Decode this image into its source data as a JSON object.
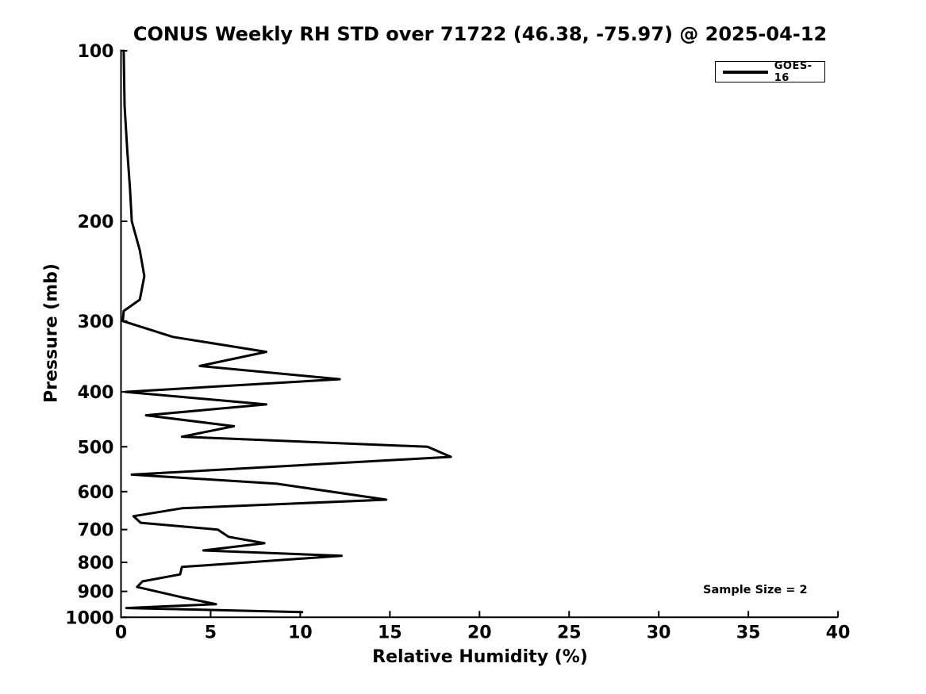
{
  "chart_data": {
    "type": "line",
    "title": "CONUS Weekly RH STD over 71722 (46.38, -75.97) @ 2025-04-12",
    "xlabel": "Relative Humidity (%)",
    "ylabel": "Pressure (mb)",
    "xlim": [
      0,
      40
    ],
    "xticks": [
      0,
      5,
      10,
      15,
      20,
      25,
      30,
      35,
      40
    ],
    "yscale": "log",
    "y_axis_inverted": true,
    "ylim": [
      100,
      1000
    ],
    "yticks": [
      100,
      200,
      300,
      400,
      500,
      600,
      700,
      800,
      900,
      1000
    ],
    "grid": false,
    "legend_position": "upper right",
    "annotations": [
      {
        "text": "Sample Size = 2",
        "approx_position": {
          "rh_percent": 34.5,
          "pressure_mb": 880
        }
      }
    ],
    "series": [
      {
        "name": "GOES-16",
        "color": "#000000",
        "line_width": 3,
        "points_pressure_mb_rh_std": [
          [
            100,
            0.15
          ],
          [
            125,
            0.2
          ],
          [
            150,
            0.35
          ],
          [
            175,
            0.5
          ],
          [
            200,
            0.6
          ],
          [
            225,
            1.05
          ],
          [
            250,
            1.3
          ],
          [
            275,
            1.05
          ],
          [
            288,
            0.15
          ],
          [
            300,
            0.1
          ],
          [
            320,
            2.9
          ],
          [
            340,
            8.1
          ],
          [
            360,
            4.4
          ],
          [
            380,
            12.2
          ],
          [
            400,
            0.25
          ],
          [
            421,
            8.1
          ],
          [
            440,
            1.4
          ],
          [
            460,
            6.3
          ],
          [
            480,
            3.4
          ],
          [
            500,
            17.1
          ],
          [
            521,
            18.4
          ],
          [
            560,
            0.6
          ],
          [
            581,
            8.7
          ],
          [
            620,
            14.8
          ],
          [
            642,
            3.4
          ],
          [
            663,
            0.7
          ],
          [
            681,
            1.1
          ],
          [
            700,
            5.4
          ],
          [
            721,
            6.0
          ],
          [
            740,
            8.0
          ],
          [
            762,
            4.6
          ],
          [
            779,
            12.3
          ],
          [
            815,
            3.4
          ],
          [
            840,
            3.3
          ],
          [
            864,
            1.2
          ],
          [
            884,
            0.9
          ],
          [
            922,
            3.4
          ],
          [
            948,
            5.3
          ],
          [
            963,
            0.3
          ],
          [
            979,
            10.1
          ]
        ]
      }
    ]
  },
  "legend": {
    "entries": [
      {
        "label": "GOES-16",
        "color": "#000000",
        "style": "solid-line"
      }
    ]
  }
}
